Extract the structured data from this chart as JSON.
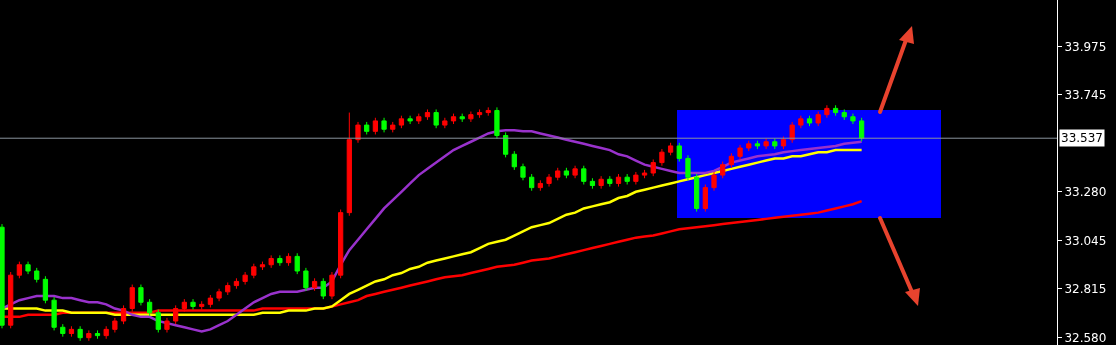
{
  "chart_data": {
    "type": "candlestick",
    "categories": [
      null,
      null,
      null,
      null,
      null,
      null,
      null,
      null,
      null,
      null,
      null,
      null,
      null,
      null,
      null,
      null,
      null,
      null,
      null,
      null,
      null,
      null,
      null,
      null,
      null,
      null,
      null,
      null,
      null,
      null,
      null,
      null,
      null,
      null,
      null,
      null,
      null,
      null,
      null,
      null,
      null,
      null,
      null,
      null,
      null,
      null,
      null,
      null,
      null,
      null,
      null,
      null,
      null,
      null,
      null,
      null,
      null,
      null,
      null,
      null,
      null,
      null,
      null,
      null,
      null,
      null,
      null,
      null,
      null,
      null,
      null,
      null,
      null,
      null,
      null,
      null,
      null,
      null,
      null,
      null,
      null,
      null,
      null,
      null,
      null,
      null,
      null,
      null,
      null,
      null,
      null,
      null,
      null,
      null,
      null,
      null,
      null,
      null,
      null,
      null
    ],
    "ohlc": [
      [
        33.11,
        33.125,
        32.625,
        32.64
      ],
      [
        32.64,
        32.895,
        32.625,
        32.88
      ],
      [
        32.88,
        32.945,
        32.865,
        32.93
      ],
      [
        32.93,
        32.945,
        32.885,
        32.9
      ],
      [
        32.9,
        32.915,
        32.845,
        32.86
      ],
      [
        32.86,
        32.875,
        32.745,
        32.76
      ],
      [
        32.76,
        32.775,
        32.615,
        32.63
      ],
      [
        32.63,
        32.645,
        32.585,
        32.6
      ],
      [
        32.6,
        32.635,
        32.585,
        32.62
      ],
      [
        32.62,
        32.635,
        32.565,
        32.58
      ],
      [
        32.58,
        32.615,
        32.565,
        32.6
      ],
      [
        32.6,
        32.615,
        32.575,
        32.59
      ],
      [
        32.59,
        32.635,
        32.575,
        32.62
      ],
      [
        32.62,
        32.675,
        32.605,
        32.66
      ],
      [
        32.66,
        32.735,
        32.645,
        32.72
      ],
      [
        32.72,
        32.835,
        32.705,
        32.82
      ],
      [
        32.82,
        32.835,
        32.735,
        32.75
      ],
      [
        32.75,
        32.765,
        32.685,
        32.7
      ],
      [
        32.7,
        32.715,
        32.605,
        32.62
      ],
      [
        32.62,
        32.675,
        32.605,
        32.66
      ],
      [
        32.66,
        32.735,
        32.645,
        32.72
      ],
      [
        32.72,
        32.765,
        32.705,
        32.75
      ],
      [
        32.75,
        32.765,
        32.715,
        32.73
      ],
      [
        32.73,
        32.755,
        32.715,
        32.74
      ],
      [
        32.74,
        32.785,
        32.725,
        32.77
      ],
      [
        32.77,
        32.815,
        32.755,
        32.8
      ],
      [
        32.8,
        32.845,
        32.785,
        32.83
      ],
      [
        32.83,
        32.865,
        32.815,
        32.85
      ],
      [
        32.85,
        32.895,
        32.835,
        32.88
      ],
      [
        32.88,
        32.935,
        32.865,
        32.92
      ],
      [
        32.92,
        32.945,
        32.905,
        32.93
      ],
      [
        32.93,
        32.975,
        32.915,
        32.96
      ],
      [
        32.96,
        32.975,
        32.925,
        32.94
      ],
      [
        32.94,
        32.985,
        32.925,
        32.97
      ],
      [
        32.97,
        32.985,
        32.885,
        32.9
      ],
      [
        32.9,
        32.915,
        32.805,
        32.82
      ],
      [
        32.82,
        32.865,
        32.805,
        32.85
      ],
      [
        32.85,
        32.865,
        32.765,
        32.78
      ],
      [
        32.78,
        32.895,
        32.765,
        32.88
      ],
      [
        32.88,
        33.195,
        32.865,
        33.18
      ],
      [
        33.18,
        33.66,
        33.165,
        33.53
      ],
      [
        33.53,
        33.615,
        33.515,
        33.6
      ],
      [
        33.6,
        33.615,
        33.555,
        33.57
      ],
      [
        33.57,
        33.635,
        33.555,
        33.62
      ],
      [
        33.62,
        33.635,
        33.565,
        33.58
      ],
      [
        33.58,
        33.615,
        33.565,
        33.6
      ],
      [
        33.6,
        33.645,
        33.585,
        33.63
      ],
      [
        33.63,
        33.645,
        33.605,
        33.62
      ],
      [
        33.62,
        33.655,
        33.605,
        33.64
      ],
      [
        33.64,
        33.675,
        33.625,
        33.66
      ],
      [
        33.66,
        33.675,
        33.585,
        33.6
      ],
      [
        33.6,
        33.635,
        33.585,
        33.62
      ],
      [
        33.62,
        33.655,
        33.605,
        33.64
      ],
      [
        33.64,
        33.655,
        33.615,
        33.63
      ],
      [
        33.63,
        33.665,
        33.615,
        33.65
      ],
      [
        33.65,
        33.675,
        33.635,
        33.66
      ],
      [
        33.66,
        33.685,
        33.645,
        33.67
      ],
      [
        33.67,
        33.685,
        33.535,
        33.55
      ],
      [
        33.55,
        33.565,
        33.445,
        33.46
      ],
      [
        33.46,
        33.475,
        33.385,
        33.4
      ],
      [
        33.4,
        33.415,
        33.335,
        33.35
      ],
      [
        33.35,
        33.365,
        33.285,
        33.3
      ],
      [
        33.3,
        33.335,
        33.285,
        33.32
      ],
      [
        33.32,
        33.365,
        33.305,
        33.35
      ],
      [
        33.35,
        33.395,
        33.335,
        33.38
      ],
      [
        33.38,
        33.395,
        33.345,
        33.36
      ],
      [
        33.36,
        33.405,
        33.345,
        33.39
      ],
      [
        33.39,
        33.405,
        33.315,
        33.33
      ],
      [
        33.33,
        33.345,
        33.295,
        33.31
      ],
      [
        33.31,
        33.355,
        33.295,
        33.34
      ],
      [
        33.34,
        33.355,
        33.305,
        33.32
      ],
      [
        33.32,
        33.365,
        33.305,
        33.35
      ],
      [
        33.35,
        33.365,
        33.315,
        33.33
      ],
      [
        33.33,
        33.375,
        33.315,
        33.36
      ],
      [
        33.36,
        33.385,
        33.345,
        33.37
      ],
      [
        33.37,
        33.435,
        33.355,
        33.42
      ],
      [
        33.42,
        33.485,
        33.405,
        33.47
      ],
      [
        33.47,
        33.515,
        33.455,
        33.5
      ],
      [
        33.5,
        33.515,
        33.425,
        33.44
      ],
      [
        33.44,
        33.455,
        33.335,
        33.35
      ],
      [
        33.35,
        33.365,
        33.185,
        33.2
      ],
      [
        33.2,
        33.315,
        33.185,
        33.3
      ],
      [
        33.3,
        33.375,
        33.285,
        33.36
      ],
      [
        33.36,
        33.425,
        33.345,
        33.41
      ],
      [
        33.41,
        33.465,
        33.395,
        33.45
      ],
      [
        33.45,
        33.505,
        33.435,
        33.49
      ],
      [
        33.49,
        33.525,
        33.475,
        33.51
      ],
      [
        33.51,
        33.525,
        33.485,
        33.5
      ],
      [
        33.5,
        33.535,
        33.485,
        33.52
      ],
      [
        33.52,
        33.535,
        33.485,
        33.5
      ],
      [
        33.5,
        33.545,
        33.485,
        33.53
      ],
      [
        33.53,
        33.615,
        33.515,
        33.6
      ],
      [
        33.6,
        33.645,
        33.585,
        33.63
      ],
      [
        33.63,
        33.645,
        33.595,
        33.61
      ],
      [
        33.61,
        33.665,
        33.595,
        33.65
      ],
      [
        33.65,
        33.695,
        33.635,
        33.68
      ],
      [
        33.68,
        33.695,
        33.645,
        33.66
      ],
      [
        33.66,
        33.675,
        33.625,
        33.64
      ],
      [
        33.64,
        33.655,
        33.605,
        33.62
      ],
      [
        33.62,
        33.635,
        33.522,
        33.537
      ]
    ],
    "colors": [
      "#00ff00",
      "#ff0000",
      "#ff0000",
      "#00ff00",
      "#00ff00",
      "#00ff00",
      "#00ff00",
      "#00ff00",
      "#ff0000",
      "#00ff00",
      "#ff0000",
      "#00ff00",
      "#ff0000",
      "#ff0000",
      "#ff0000",
      "#ff0000",
      "#00ff00",
      "#00ff00",
      "#00ff00",
      "#ff0000",
      "#ff0000",
      "#ff0000",
      "#00ff00",
      "#ff0000",
      "#ff0000",
      "#ff0000",
      "#ff0000",
      "#ff0000",
      "#ff0000",
      "#ff0000",
      "#ff0000",
      "#ff0000",
      "#00ff00",
      "#ff0000",
      "#00ff00",
      "#00ff00",
      "#ff0000",
      "#00ff00",
      "#ff0000",
      "#ff0000",
      "#ff0000",
      "#ff0000",
      "#00ff00",
      "#ff0000",
      "#00ff00",
      "#ff0000",
      "#ff0000",
      "#00ff00",
      "#ff0000",
      "#ff0000",
      "#00ff00",
      "#ff0000",
      "#ff0000",
      "#00ff00",
      "#ff0000",
      "#ff0000",
      "#ff0000",
      "#00ff00",
      "#00ff00",
      "#00ff00",
      "#00ff00",
      "#00ff00",
      "#ff0000",
      "#ff0000",
      "#ff0000",
      "#00ff00",
      "#ff0000",
      "#00ff00",
      "#00ff00",
      "#ff0000",
      "#00ff00",
      "#ff0000",
      "#00ff00",
      "#ff0000",
      "#ff0000",
      "#ff0000",
      "#ff0000",
      "#ff0000",
      "#00ff00",
      "#00ff00",
      "#00ff00",
      "#ff0000",
      "#ff0000",
      "#ff0000",
      "#ff0000",
      "#ff0000",
      "#ff0000",
      "#00ff00",
      "#ff0000",
      "#00ff00",
      "#ff0000",
      "#ff0000",
      "#ff0000",
      "#00ff00",
      "#ff0000",
      "#ff0000",
      "#00ff00",
      "#00ff00",
      "#00ff00",
      "#00ff00"
    ],
    "series": [
      {
        "type": "line",
        "color": "#9932cc",
        "values": [
          32.72,
          32.74,
          32.76,
          32.77,
          32.78,
          32.78,
          32.78,
          32.77,
          32.77,
          32.76,
          32.75,
          32.75,
          32.74,
          32.72,
          32.71,
          32.69,
          32.68,
          32.68,
          32.66,
          32.65,
          32.64,
          32.63,
          32.62,
          32.61,
          32.62,
          32.64,
          32.66,
          32.69,
          32.72,
          32.75,
          32.77,
          32.79,
          32.8,
          32.8,
          32.8,
          32.81,
          32.82,
          32.82,
          32.85,
          32.93,
          33.0,
          33.05,
          33.1,
          33.15,
          33.2,
          33.24,
          33.28,
          33.32,
          33.36,
          33.39,
          33.42,
          33.45,
          33.48,
          33.5,
          33.52,
          33.54,
          33.56,
          33.57,
          33.575,
          33.575,
          33.57,
          33.57,
          33.56,
          33.55,
          33.54,
          33.53,
          33.52,
          33.51,
          33.5,
          33.49,
          33.48,
          33.46,
          33.45,
          33.43,
          33.41,
          33.4,
          33.39,
          33.38,
          33.37,
          33.37,
          33.37,
          33.37,
          33.38,
          33.4,
          33.42,
          33.43,
          33.44,
          33.45,
          33.455,
          33.46,
          33.47,
          33.475,
          33.48,
          33.485,
          33.49,
          33.495,
          33.5,
          33.51,
          33.515,
          33.52
        ]
      },
      {
        "type": "line",
        "color": "#ffff00",
        "values": [
          32.72,
          32.72,
          32.72,
          32.72,
          32.72,
          32.71,
          32.71,
          32.71,
          32.7,
          32.7,
          32.7,
          32.7,
          32.7,
          32.69,
          32.69,
          32.69,
          32.69,
          32.69,
          32.69,
          32.69,
          32.69,
          32.69,
          32.69,
          32.69,
          32.69,
          32.69,
          32.69,
          32.69,
          32.69,
          32.69,
          32.7,
          32.7,
          32.7,
          32.71,
          32.71,
          32.71,
          32.72,
          32.72,
          32.73,
          32.76,
          32.79,
          32.81,
          32.83,
          32.85,
          32.86,
          32.88,
          32.89,
          32.91,
          32.92,
          32.94,
          32.95,
          32.96,
          32.97,
          32.98,
          32.99,
          33.01,
          33.03,
          33.04,
          33.05,
          33.07,
          33.09,
          33.11,
          33.12,
          33.13,
          33.15,
          33.17,
          33.18,
          33.2,
          33.21,
          33.22,
          33.23,
          33.25,
          33.26,
          33.28,
          33.29,
          33.3,
          33.31,
          33.32,
          33.33,
          33.34,
          33.35,
          33.36,
          33.37,
          33.38,
          33.39,
          33.4,
          33.41,
          33.42,
          33.43,
          33.44,
          33.44,
          33.45,
          33.45,
          33.46,
          33.47,
          33.47,
          33.48,
          33.48,
          33.48,
          33.48
        ]
      },
      {
        "type": "line",
        "color": "#ff0000",
        "values": [
          32.68,
          32.68,
          32.68,
          32.69,
          32.69,
          32.69,
          32.69,
          32.7,
          32.7,
          32.7,
          32.7,
          32.7,
          32.7,
          32.7,
          32.7,
          32.7,
          32.7,
          32.7,
          32.71,
          32.71,
          32.71,
          32.71,
          32.71,
          32.71,
          32.71,
          32.71,
          32.71,
          32.71,
          32.71,
          32.71,
          32.72,
          32.72,
          32.72,
          32.72,
          32.72,
          32.72,
          32.72,
          32.72,
          32.73,
          32.74,
          32.75,
          32.76,
          32.78,
          32.79,
          32.8,
          32.81,
          32.82,
          32.83,
          32.84,
          32.85,
          32.86,
          32.87,
          32.875,
          32.88,
          32.89,
          32.9,
          32.91,
          32.92,
          32.925,
          32.93,
          32.94,
          32.95,
          32.955,
          32.96,
          32.97,
          32.98,
          32.99,
          33.0,
          33.01,
          33.02,
          33.03,
          33.04,
          33.05,
          33.06,
          33.065,
          33.07,
          33.08,
          33.09,
          33.1,
          33.105,
          33.11,
          33.115,
          33.12,
          33.125,
          33.13,
          33.135,
          33.14,
          33.145,
          33.15,
          33.155,
          33.16,
          33.165,
          33.17,
          33.175,
          33.18,
          33.19,
          33.2,
          33.21,
          33.22,
          33.235
        ]
      }
    ],
    "ylim": [
      32.545,
      34.2
    ],
    "yticks": [
      {
        "value": 33.975,
        "label": "33.975"
      },
      {
        "value": 33.745,
        "label": "33.745"
      },
      {
        "value": 33.28,
        "label": "33.280"
      },
      {
        "value": 33.045,
        "label": "33.045"
      },
      {
        "value": 32.815,
        "label": "32.815"
      },
      {
        "value": 32.58,
        "label": "32.580"
      }
    ],
    "ref_lines": [
      {
        "axis": "y",
        "value": 33.537,
        "label": "33.537",
        "color": "#8a949e"
      }
    ],
    "tick_labels": "y"
  }
}
